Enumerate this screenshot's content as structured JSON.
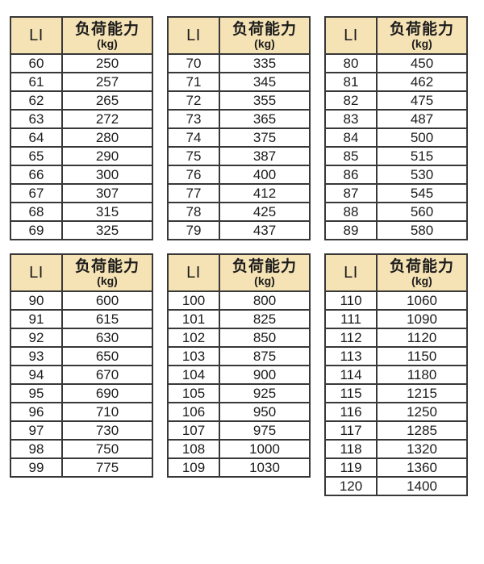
{
  "header": {
    "li": "LI",
    "capacity": "负荷能力",
    "unit": "(kg)"
  },
  "colors": {
    "header_bg": "#f6e3b5",
    "border": "#383838",
    "text": "#1c1c1c",
    "page_bg": "#ffffff"
  },
  "chart_data": [
    {
      "type": "table",
      "columns": [
        "LI",
        "负荷能力 (kg)"
      ],
      "rows": [
        [
          "60",
          "250"
        ],
        [
          "61",
          "257"
        ],
        [
          "62",
          "265"
        ],
        [
          "63",
          "272"
        ],
        [
          "64",
          "280"
        ],
        [
          "65",
          "290"
        ],
        [
          "66",
          "300"
        ],
        [
          "67",
          "307"
        ],
        [
          "68",
          "315"
        ],
        [
          "69",
          "325"
        ]
      ]
    },
    {
      "type": "table",
      "columns": [
        "LI",
        "负荷能力 (kg)"
      ],
      "rows": [
        [
          "70",
          "335"
        ],
        [
          "71",
          "345"
        ],
        [
          "72",
          "355"
        ],
        [
          "73",
          "365"
        ],
        [
          "74",
          "375"
        ],
        [
          "75",
          "387"
        ],
        [
          "76",
          "400"
        ],
        [
          "77",
          "412"
        ],
        [
          "78",
          "425"
        ],
        [
          "79",
          "437"
        ]
      ]
    },
    {
      "type": "table",
      "columns": [
        "LI",
        "负荷能力 (kg)"
      ],
      "rows": [
        [
          "80",
          "450"
        ],
        [
          "81",
          "462"
        ],
        [
          "82",
          "475"
        ],
        [
          "83",
          "487"
        ],
        [
          "84",
          "500"
        ],
        [
          "85",
          "515"
        ],
        [
          "86",
          "530"
        ],
        [
          "87",
          "545"
        ],
        [
          "88",
          "560"
        ],
        [
          "89",
          "580"
        ]
      ]
    },
    {
      "type": "table",
      "columns": [
        "LI",
        "负荷能力 (kg)"
      ],
      "rows": [
        [
          "90",
          "600"
        ],
        [
          "91",
          "615"
        ],
        [
          "92",
          "630"
        ],
        [
          "93",
          "650"
        ],
        [
          "94",
          "670"
        ],
        [
          "95",
          "690"
        ],
        [
          "96",
          "710"
        ],
        [
          "97",
          "730"
        ],
        [
          "98",
          "750"
        ],
        [
          "99",
          "775"
        ]
      ]
    },
    {
      "type": "table",
      "columns": [
        "LI",
        "负荷能力 (kg)"
      ],
      "rows": [
        [
          "100",
          "800"
        ],
        [
          "101",
          "825"
        ],
        [
          "102",
          "850"
        ],
        [
          "103",
          "875"
        ],
        [
          "104",
          "900"
        ],
        [
          "105",
          "925"
        ],
        [
          "106",
          "950"
        ],
        [
          "107",
          "975"
        ],
        [
          "108",
          "1000"
        ],
        [
          "109",
          "1030"
        ]
      ]
    },
    {
      "type": "table",
      "columns": [
        "LI",
        "负荷能力 (kg)"
      ],
      "rows": [
        [
          "110",
          "1060"
        ],
        [
          "111",
          "1090"
        ],
        [
          "112",
          "1120"
        ],
        [
          "113",
          "1150"
        ],
        [
          "114",
          "1180"
        ],
        [
          "115",
          "1215"
        ],
        [
          "116",
          "1250"
        ],
        [
          "117",
          "1285"
        ],
        [
          "118",
          "1320"
        ],
        [
          "119",
          "1360"
        ],
        [
          "120",
          "1400"
        ]
      ]
    }
  ]
}
